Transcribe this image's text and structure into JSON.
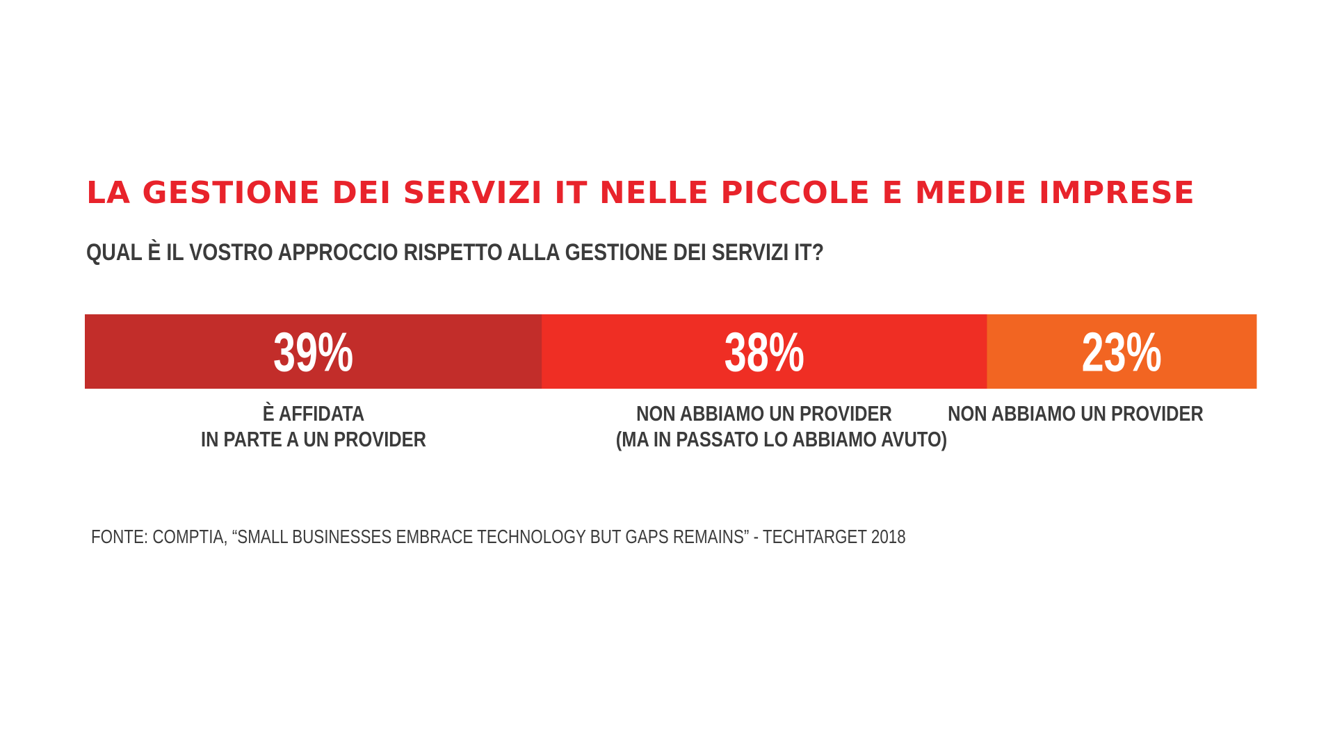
{
  "title": "LA GESTIONE DEI SERVIZI IT NELLE PICCOLE E MEDIE IMPRESE",
  "subtitle": "QUAL È IL VOSTRO APPROCCIO RISPETTO ALLA GESTIONE DEI SERVIZI IT?",
  "source": "FONTE: COMPTIA, “SMALL BUSINESSES EMBRACE TECHNOLOGY BUT GAPS REMAINS” - TECHTARGET 2018",
  "chart_data": {
    "type": "bar",
    "stacked": true,
    "orientation": "horizontal",
    "title": "LA GESTIONE DEI SERVIZI IT NELLE PICCOLE E MEDIE IMPRESE",
    "subtitle": "QUAL È IL VOSTRO APPROCCIO RISPETTO ALLA GESTIONE DEI SERVIZI IT?",
    "categories": [
      "È AFFIDATA IN PARTE A UN PROVIDER",
      "NON ABBIAMO UN PROVIDER (MA IN PASSATO LO ABBIAMO AVUTO)",
      "NON ABBIAMO UN PROVIDER"
    ],
    "values": [
      39,
      38,
      23
    ],
    "value_labels": [
      "39%",
      "38%",
      "23%"
    ],
    "category_lines": [
      [
        "È AFFIDATA",
        "IN PARTE A UN PROVIDER"
      ],
      [
        "NON ABBIAMO UN PROVIDER",
        "(MA IN PASSATO LO ABBIAMO AVUTO)"
      ],
      [
        "NON ABBIAMO UN PROVIDER"
      ]
    ],
    "colors": [
      "#c22d2a",
      "#ef2e24",
      "#f26522"
    ],
    "unit": "%",
    "total": 100,
    "grid": false,
    "legend": "none"
  }
}
